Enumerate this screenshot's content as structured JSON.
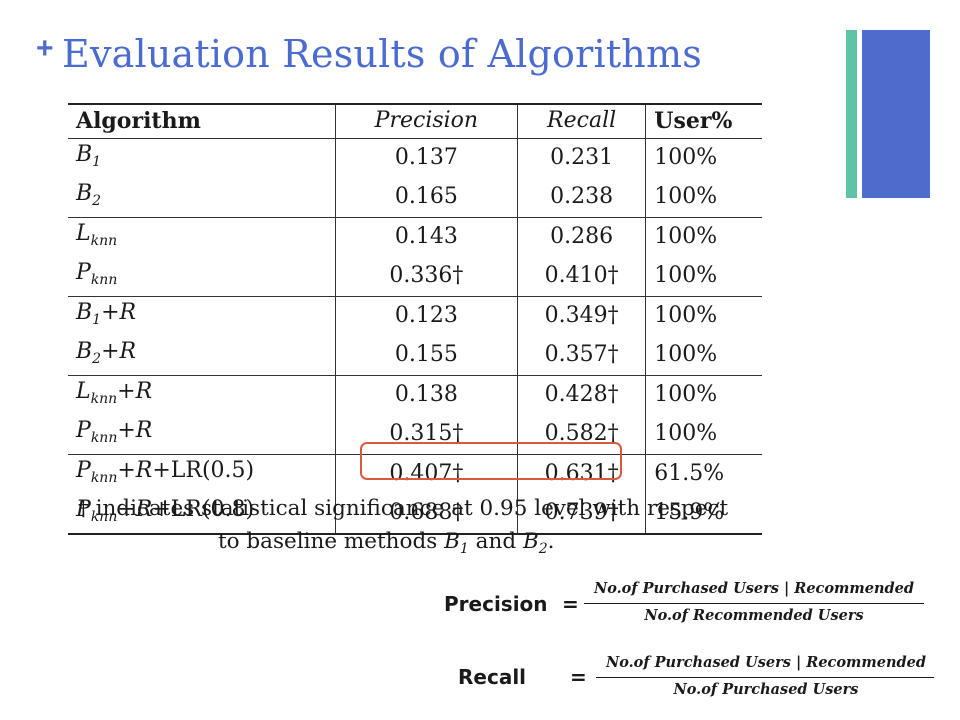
{
  "slide": {
    "plus": "+",
    "title": "Evaluation Results of Algorithms",
    "accent_colors": {
      "title": "#4b6bd0",
      "bar_teal": "#5fc4a6",
      "bar_blue": "#4e6ccc",
      "highlight": "#d9593c"
    }
  },
  "table": {
    "headers": [
      "Algorithm",
      "Precision",
      "Recall",
      "User%"
    ],
    "rows": [
      {
        "alg": "B",
        "sub": "1",
        "suffix": "",
        "precision": "0.137",
        "recall": "0.231",
        "user": "100%"
      },
      {
        "alg": "B",
        "sub": "2",
        "suffix": "",
        "precision": "0.165",
        "recall": "0.238",
        "user": "100%"
      },
      {
        "alg": "L",
        "sub": "knn",
        "suffix": "",
        "precision": "0.143",
        "recall": "0.286",
        "user": "100%"
      },
      {
        "alg": "P",
        "sub": "knn",
        "suffix": "",
        "precision": "0.336†",
        "recall": "0.410†",
        "user": "100%"
      },
      {
        "alg": "B",
        "sub": "1",
        "suffix": "+R",
        "precision": "0.123",
        "recall": "0.349†",
        "user": "100%"
      },
      {
        "alg": "B",
        "sub": "2",
        "suffix": "+R",
        "precision": "0.155",
        "recall": "0.357†",
        "user": "100%"
      },
      {
        "alg": "L",
        "sub": "knn",
        "suffix": "+R",
        "precision": "0.138",
        "recall": "0.428†",
        "user": "100%"
      },
      {
        "alg": "P",
        "sub": "knn",
        "suffix": "+R",
        "precision": "0.315†",
        "recall": "0.582†",
        "user": "100%"
      },
      {
        "alg": "P",
        "sub": "knn",
        "suffix": "+R+",
        "suffix_rm": "LR(0.5)",
        "precision": "0.407†",
        "recall": "0.631†",
        "user": "61.5%"
      },
      {
        "alg": "P",
        "sub": "knn",
        "suffix": "+R+",
        "suffix_rm": "LR(0.8)",
        "precision": "0.688†",
        "recall": "0.739†",
        "user": "15.9%"
      }
    ],
    "footnote": {
      "line1": "† indicates statistical significance at 0.95 level with respect",
      "line2_prefix": "to baseline methods ",
      "b1": "B",
      "b1_sub": "1",
      "and": " and ",
      "b2": "B",
      "b2_sub": "2",
      "end": "."
    }
  },
  "formulas": {
    "precision": {
      "label": "Precision",
      "eq": "=",
      "numerator": "No.of Purchased Users | Recommended",
      "denominator": "No.of Recommended Users"
    },
    "recall": {
      "label": "Recall",
      "eq": "=",
      "numerator": "No.of Purchased Users | Recommended",
      "denominator": "No.of Purchased Users"
    }
  }
}
